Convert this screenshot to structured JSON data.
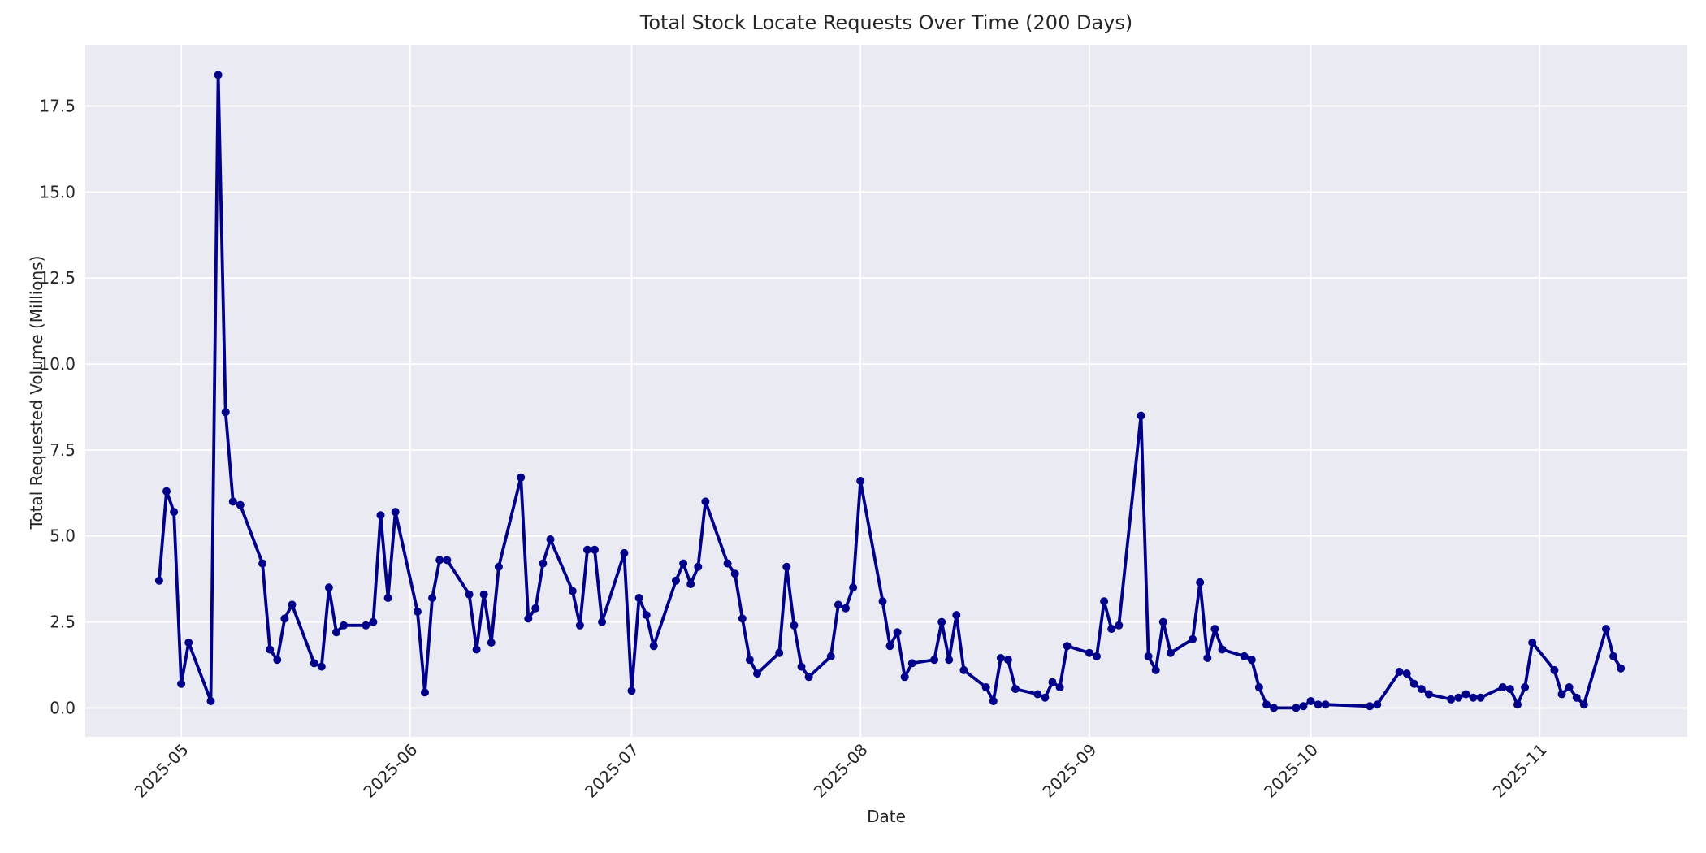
{
  "figure": {
    "background_color": "#ffffff",
    "plot_background_color": "#eaeaf2",
    "grid_color": "#ffffff",
    "text_color": "#262626",
    "line_color": "#00008b"
  },
  "chart_data": {
    "type": "line",
    "title": "Total Stock Locate Requests Over Time (200 Days)",
    "xlabel": "Date",
    "ylabel": "Total Requested Volume (Millions)",
    "legend": false,
    "grid": true,
    "marker": "o",
    "x_ticks": [
      {
        "label": "2025-05",
        "date": "2025-05-01"
      },
      {
        "label": "2025-06",
        "date": "2025-06-01"
      },
      {
        "label": "2025-07",
        "date": "2025-07-01"
      },
      {
        "label": "2025-08",
        "date": "2025-08-01"
      },
      {
        "label": "2025-09",
        "date": "2025-09-01"
      },
      {
        "label": "2025-10",
        "date": "2025-10-01"
      },
      {
        "label": "2025-11",
        "date": "2025-11-01"
      }
    ],
    "y_ticks": [
      {
        "label": "0.0",
        "value": 0.0
      },
      {
        "label": "2.5",
        "value": 2.5
      },
      {
        "label": "5.0",
        "value": 5.0
      },
      {
        "label": "7.5",
        "value": 7.5
      },
      {
        "label": "10.0",
        "value": 10.0
      },
      {
        "label": "12.5",
        "value": 12.5
      },
      {
        "label": "15.0",
        "value": 15.0
      },
      {
        "label": "17.5",
        "value": 17.5
      }
    ],
    "xlim": [
      "2025-04-18",
      "2025-11-21"
    ],
    "ylim": [
      -0.84,
      19.26
    ],
    "series": [
      {
        "name": "total-requested-volume",
        "points": [
          [
            "2025-04-28",
            3.7
          ],
          [
            "2025-04-29",
            6.3
          ],
          [
            "2025-04-30",
            5.7
          ],
          [
            "2025-05-01",
            0.7
          ],
          [
            "2025-05-02",
            1.9
          ],
          [
            "2025-05-05",
            0.2
          ],
          [
            "2025-05-06",
            18.4
          ],
          [
            "2025-05-07",
            8.6
          ],
          [
            "2025-05-08",
            6.0
          ],
          [
            "2025-05-09",
            5.9
          ],
          [
            "2025-05-12",
            4.2
          ],
          [
            "2025-05-13",
            1.7
          ],
          [
            "2025-05-14",
            1.4
          ],
          [
            "2025-05-15",
            2.6
          ],
          [
            "2025-05-16",
            3.0
          ],
          [
            "2025-05-19",
            1.3
          ],
          [
            "2025-05-20",
            1.2
          ],
          [
            "2025-05-21",
            3.5
          ],
          [
            "2025-05-22",
            2.2
          ],
          [
            "2025-05-23",
            2.4
          ],
          [
            "2025-05-26",
            2.4
          ],
          [
            "2025-05-27",
            2.5
          ],
          [
            "2025-05-28",
            5.6
          ],
          [
            "2025-05-29",
            3.2
          ],
          [
            "2025-05-30",
            5.7
          ],
          [
            "2025-06-02",
            2.8
          ],
          [
            "2025-06-03",
            0.45
          ],
          [
            "2025-06-04",
            3.2
          ],
          [
            "2025-06-05",
            4.3
          ],
          [
            "2025-06-06",
            4.3
          ],
          [
            "2025-06-09",
            3.3
          ],
          [
            "2025-06-10",
            1.7
          ],
          [
            "2025-06-11",
            3.3
          ],
          [
            "2025-06-12",
            1.9
          ],
          [
            "2025-06-13",
            4.1
          ],
          [
            "2025-06-16",
            6.7
          ],
          [
            "2025-06-17",
            2.6
          ],
          [
            "2025-06-18",
            2.9
          ],
          [
            "2025-06-19",
            4.2
          ],
          [
            "2025-06-20",
            4.9
          ],
          [
            "2025-06-23",
            3.4
          ],
          [
            "2025-06-24",
            2.4
          ],
          [
            "2025-06-25",
            4.6
          ],
          [
            "2025-06-26",
            4.6
          ],
          [
            "2025-06-27",
            2.5
          ],
          [
            "2025-06-30",
            4.5
          ],
          [
            "2025-07-01",
            0.5
          ],
          [
            "2025-07-02",
            3.2
          ],
          [
            "2025-07-03",
            2.7
          ],
          [
            "2025-07-04",
            1.8
          ],
          [
            "2025-07-07",
            3.7
          ],
          [
            "2025-07-08",
            4.2
          ],
          [
            "2025-07-09",
            3.6
          ],
          [
            "2025-07-10",
            4.1
          ],
          [
            "2025-07-11",
            6.0
          ],
          [
            "2025-07-14",
            4.2
          ],
          [
            "2025-07-15",
            3.9
          ],
          [
            "2025-07-16",
            2.6
          ],
          [
            "2025-07-17",
            1.4
          ],
          [
            "2025-07-18",
            1.0
          ],
          [
            "2025-07-21",
            1.6
          ],
          [
            "2025-07-22",
            4.1
          ],
          [
            "2025-07-23",
            2.4
          ],
          [
            "2025-07-24",
            1.2
          ],
          [
            "2025-07-25",
            0.9
          ],
          [
            "2025-07-28",
            1.5
          ],
          [
            "2025-07-29",
            3.0
          ],
          [
            "2025-07-30",
            2.9
          ],
          [
            "2025-07-31",
            3.5
          ],
          [
            "2025-08-01",
            6.6
          ],
          [
            "2025-08-04",
            3.1
          ],
          [
            "2025-08-05",
            1.8
          ],
          [
            "2025-08-06",
            2.2
          ],
          [
            "2025-08-07",
            0.9
          ],
          [
            "2025-08-08",
            1.3
          ],
          [
            "2025-08-11",
            1.4
          ],
          [
            "2025-08-12",
            2.5
          ],
          [
            "2025-08-13",
            1.4
          ],
          [
            "2025-08-14",
            2.7
          ],
          [
            "2025-08-15",
            1.1
          ],
          [
            "2025-08-18",
            0.6
          ],
          [
            "2025-08-19",
            0.2
          ],
          [
            "2025-08-20",
            1.45
          ],
          [
            "2025-08-21",
            1.4
          ],
          [
            "2025-08-22",
            0.55
          ],
          [
            "2025-08-25",
            0.4
          ],
          [
            "2025-08-26",
            0.3
          ],
          [
            "2025-08-27",
            0.75
          ],
          [
            "2025-08-28",
            0.6
          ],
          [
            "2025-08-29",
            1.8
          ],
          [
            "2025-09-01",
            1.6
          ],
          [
            "2025-09-02",
            1.5
          ],
          [
            "2025-09-03",
            3.1
          ],
          [
            "2025-09-04",
            2.3
          ],
          [
            "2025-09-05",
            2.4
          ],
          [
            "2025-09-08",
            8.5
          ],
          [
            "2025-09-09",
            1.5
          ],
          [
            "2025-09-10",
            1.1
          ],
          [
            "2025-09-11",
            2.5
          ],
          [
            "2025-09-12",
            1.6
          ],
          [
            "2025-09-15",
            2.0
          ],
          [
            "2025-09-16",
            3.65
          ],
          [
            "2025-09-17",
            1.45
          ],
          [
            "2025-09-18",
            2.3
          ],
          [
            "2025-09-19",
            1.7
          ],
          [
            "2025-09-22",
            1.5
          ],
          [
            "2025-09-23",
            1.4
          ],
          [
            "2025-09-24",
            0.6
          ],
          [
            "2025-09-25",
            0.1
          ],
          [
            "2025-09-26",
            0.0
          ],
          [
            "2025-09-29",
            0.0
          ],
          [
            "2025-09-30",
            0.05
          ],
          [
            "2025-10-01",
            0.2
          ],
          [
            "2025-10-02",
            0.1
          ],
          [
            "2025-10-03",
            0.1
          ],
          [
            "2025-10-09",
            0.05
          ],
          [
            "2025-10-10",
            0.1
          ],
          [
            "2025-10-13",
            1.05
          ],
          [
            "2025-10-14",
            1.0
          ],
          [
            "2025-10-15",
            0.7
          ],
          [
            "2025-10-16",
            0.55
          ],
          [
            "2025-10-17",
            0.4
          ],
          [
            "2025-10-20",
            0.25
          ],
          [
            "2025-10-21",
            0.3
          ],
          [
            "2025-10-22",
            0.4
          ],
          [
            "2025-10-23",
            0.3
          ],
          [
            "2025-10-24",
            0.3
          ],
          [
            "2025-10-27",
            0.6
          ],
          [
            "2025-10-28",
            0.55
          ],
          [
            "2025-10-29",
            0.1
          ],
          [
            "2025-10-30",
            0.6
          ],
          [
            "2025-10-31",
            1.9
          ],
          [
            "2025-11-03",
            1.1
          ],
          [
            "2025-11-04",
            0.4
          ],
          [
            "2025-11-05",
            0.6
          ],
          [
            "2025-11-06",
            0.3
          ],
          [
            "2025-11-07",
            0.1
          ],
          [
            "2025-11-10",
            2.3
          ],
          [
            "2025-11-11",
            1.5
          ],
          [
            "2025-11-12",
            1.15
          ]
        ]
      }
    ]
  }
}
